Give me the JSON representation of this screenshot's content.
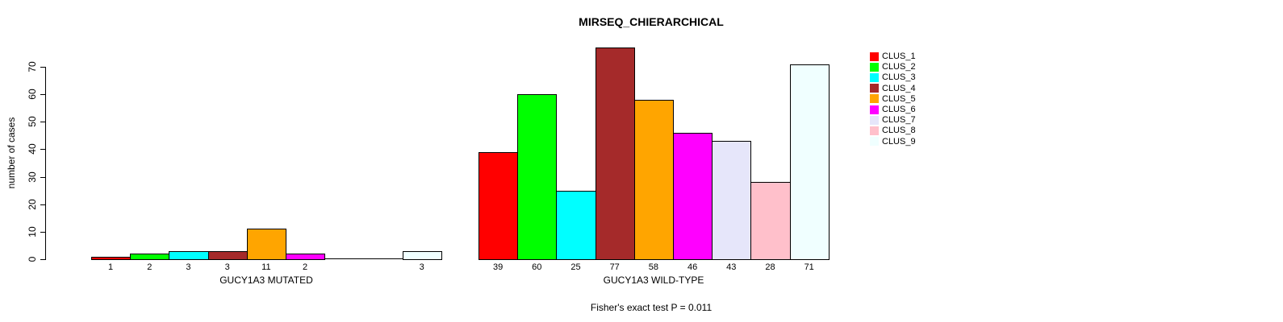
{
  "chart_data": {
    "type": "bar",
    "title": "MIRSEQ_CHIERARCHICAL",
    "ylabel": "number of cases",
    "ylim": [
      0,
      70
    ],
    "yticks": [
      0,
      10,
      20,
      30,
      40,
      50,
      60,
      70
    ],
    "grid": false,
    "legend_position": "right",
    "annotation": "Fisher's exact test P = 0.011",
    "clusters": [
      {
        "label": "CLUS_1",
        "color": "#FF0000"
      },
      {
        "label": "CLUS_2",
        "color": "#00FF00"
      },
      {
        "label": "CLUS_3",
        "color": "#00FFFF"
      },
      {
        "label": "CLUS_4",
        "color": "#A52A2A"
      },
      {
        "label": "CLUS_5",
        "color": "#FFA500"
      },
      {
        "label": "CLUS_6",
        "color": "#FF00FF"
      },
      {
        "label": "CLUS_7",
        "color": "#E6E6FA"
      },
      {
        "label": "CLUS_8",
        "color": "#FFC0CB"
      },
      {
        "label": "CLUS_9",
        "color": "#F0FFFF"
      }
    ],
    "groups": [
      {
        "xlabel": "GUCY1A3 MUTATED",
        "values": [
          1,
          2,
          3,
          3,
          11,
          2,
          0,
          0,
          3
        ]
      },
      {
        "xlabel": "GUCY1A3 WILD-TYPE",
        "values": [
          39,
          60,
          25,
          77,
          58,
          46,
          43,
          28,
          71
        ]
      }
    ]
  }
}
